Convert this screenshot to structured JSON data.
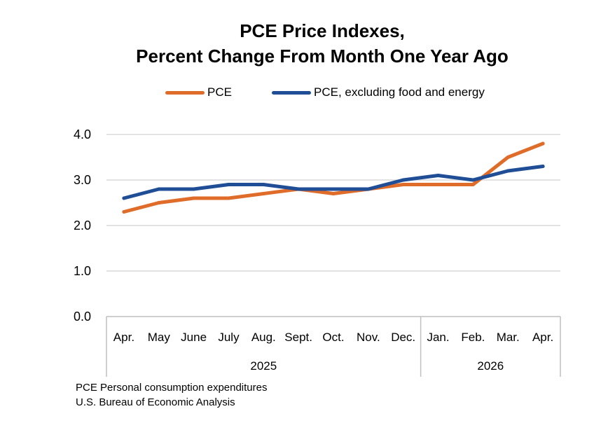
{
  "chart_data": {
    "type": "line",
    "title_lines": [
      "PCE Price Indexes,",
      "Percent Change From Month One Year Ago"
    ],
    "categories": [
      "Apr.",
      "May",
      "June",
      "July",
      "Aug.",
      "Sept.",
      "Oct.",
      "Nov.",
      "Dec.",
      "Jan.",
      "Feb.",
      "Mar.",
      "Apr."
    ],
    "year_groups": [
      {
        "label": "2025",
        "count": 9
      },
      {
        "label": "2026",
        "count": 4
      }
    ],
    "series": [
      {
        "name": "PCE",
        "color": "#E06C2A",
        "values": [
          2.3,
          2.5,
          2.6,
          2.6,
          2.7,
          2.8,
          2.7,
          2.8,
          2.9,
          2.9,
          2.9,
          3.5,
          3.8
        ]
      },
      {
        "name": "PCE, excluding food and energy",
        "color": "#1F4E96",
        "values": [
          2.6,
          2.8,
          2.8,
          2.9,
          2.9,
          2.8,
          2.8,
          2.8,
          3.0,
          3.1,
          3.0,
          3.2,
          3.3
        ]
      }
    ],
    "yticks": [
      "0.0",
      "1.0",
      "2.0",
      "3.0",
      "4.0"
    ],
    "ylim": [
      0,
      4
    ],
    "grid": true,
    "legend_position": "top"
  },
  "footer": {
    "line1": "PCE Personal consumption expenditures",
    "line2": "U.S. Bureau of Economic Analysis"
  },
  "colors": {
    "grid": "#D9D9D9",
    "axis": "#BFBFBF"
  }
}
